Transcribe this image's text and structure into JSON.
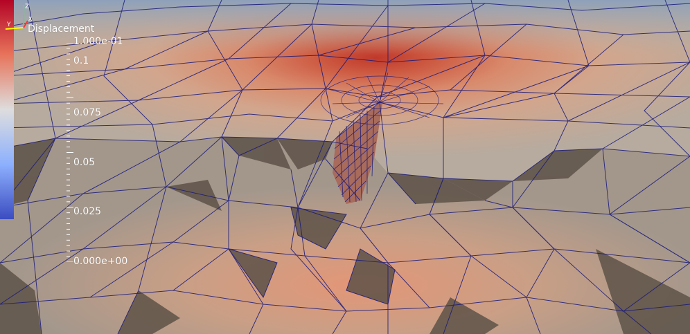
{
  "viewer": {
    "legend": {
      "title": "Displacement",
      "max_label": "1.000e-01",
      "min_label": "0.000e+00",
      "ticks": [
        {
          "label": "0.1",
          "value": 0.1
        },
        {
          "label": "0.075",
          "value": 0.075
        },
        {
          "label": "0.05",
          "value": 0.05
        },
        {
          "label": "0.025",
          "value": 0.025
        }
      ],
      "range": [
        0.0,
        0.1
      ],
      "colormap": [
        "#3b4cc0",
        "#dddddd",
        "#b40426"
      ]
    },
    "orientation_axes": {
      "x_label": "X",
      "y_label": "Y",
      "z_label": "Z",
      "x_color": "#ff3333",
      "y_color": "#ffff00",
      "z_color": "#33ff33"
    },
    "mesh_color": "#1a1a7a"
  }
}
